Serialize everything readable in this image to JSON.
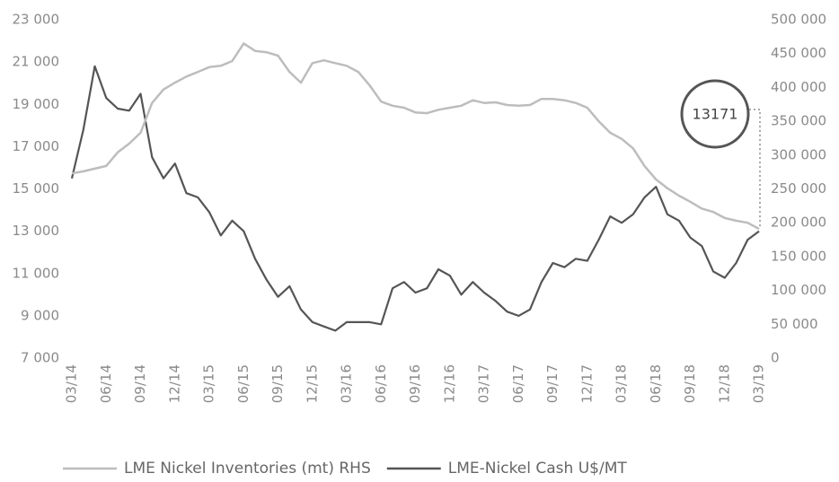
{
  "chart_data": {
    "type": "line",
    "x": [
      "03/14",
      "04/14",
      "05/14",
      "06/14",
      "07/14",
      "08/14",
      "09/14",
      "10/14",
      "11/14",
      "12/14",
      "01/15",
      "02/15",
      "03/15",
      "04/15",
      "05/15",
      "06/15",
      "07/15",
      "08/15",
      "09/15",
      "10/15",
      "11/15",
      "12/15",
      "01/16",
      "02/16",
      "03/16",
      "04/16",
      "05/16",
      "06/16",
      "07/16",
      "08/16",
      "09/16",
      "10/16",
      "11/16",
      "12/16",
      "01/17",
      "02/17",
      "03/17",
      "04/17",
      "05/17",
      "06/17",
      "07/17",
      "08/17",
      "09/17",
      "10/17",
      "11/17",
      "12/17",
      "01/18",
      "02/18",
      "03/18",
      "04/18",
      "05/18",
      "06/18",
      "07/18",
      "08/18",
      "09/18",
      "10/18",
      "11/18",
      "12/18",
      "01/19",
      "02/19",
      "03/19"
    ],
    "xticks": [
      "03/14",
      "06/14",
      "09/14",
      "12/14",
      "03/15",
      "06/15",
      "09/15",
      "12/15",
      "03/16",
      "06/16",
      "09/16",
      "12/16",
      "03/17",
      "06/17",
      "09/17",
      "12/17",
      "03/18",
      "06/18",
      "09/18",
      "12/18",
      "03/19"
    ],
    "series": [
      {
        "name": "LME Nickel Inventories (mt) RHS",
        "color": "#bdbdbd",
        "axis": "y2",
        "values": [
          273000,
          276000,
          280000,
          284000,
          304000,
          317000,
          333000,
          377000,
          397000,
          407000,
          416000,
          423000,
          430000,
          432000,
          439000,
          465000,
          454000,
          452000,
          447000,
          423000,
          407000,
          436000,
          440000,
          436000,
          432000,
          423000,
          403000,
          379000,
          373000,
          370000,
          363000,
          362000,
          367000,
          370000,
          373000,
          381000,
          377000,
          378000,
          374000,
          373000,
          374000,
          383000,
          383000,
          381000,
          377000,
          370000,
          350000,
          333000,
          324000,
          310000,
          284000,
          264000,
          251000,
          240000,
          231000,
          221000,
          216000,
          207000,
          203000,
          200000,
          191000
        ]
      },
      {
        "name": "LME-Nickel Cash U$/MT",
        "color": "#555555",
        "values": [
          15500,
          17800,
          20800,
          19300,
          18800,
          18700,
          19500,
          16500,
          15500,
          16200,
          14800,
          14600,
          13900,
          12800,
          13500,
          13000,
          11700,
          10700,
          9900,
          10400,
          9300,
          8700,
          8500,
          8300,
          8700,
          8700,
          8700,
          8600,
          10300,
          10600,
          10100,
          10300,
          11200,
          10900,
          10000,
          10600,
          10100,
          9700,
          9200,
          9000,
          9300,
          10600,
          11500,
          11300,
          11700,
          11600,
          12600,
          13700,
          13400,
          13800,
          14600,
          15100,
          13800,
          13500,
          12700,
          12300,
          11100,
          10800,
          11500,
          12600,
          13000
        ]
      }
    ],
    "ylim": [
      7000,
      23000
    ],
    "yticks": [
      {
        "value": 7000,
        "label": "7 000"
      },
      {
        "value": 9000,
        "label": "9 000"
      },
      {
        "value": 11000,
        "label": "11 000"
      },
      {
        "value": 13000,
        "label": "13 000"
      },
      {
        "value": 15000,
        "label": "15 000"
      },
      {
        "value": 17000,
        "label": "17 000"
      },
      {
        "value": 19000,
        "label": "19 000"
      },
      {
        "value": 21000,
        "label": "21 000"
      },
      {
        "value": 23000,
        "label": "23 000"
      }
    ],
    "y2lim": [
      0,
      500000
    ],
    "y2ticks": [
      0,
      {
        "value": 50000,
        "label": "50 000"
      },
      {
        "value": 100000,
        "label": "100 000"
      },
      {
        "value": 150000,
        "label": "150 000"
      },
      {
        "value": 200000,
        "label": "200 000"
      },
      {
        "value": 250000,
        "label": "250 000"
      },
      {
        "value": 300000,
        "label": "300 000"
      },
      {
        "value": 350000,
        "label": "350 000"
      },
      {
        "value": 400000,
        "label": "400 000"
      },
      {
        "value": 450000,
        "label": "450 000"
      },
      {
        "value": 500000,
        "label": "500 000"
      }
    ],
    "annotation": "13171",
    "legend": "bottom"
  }
}
